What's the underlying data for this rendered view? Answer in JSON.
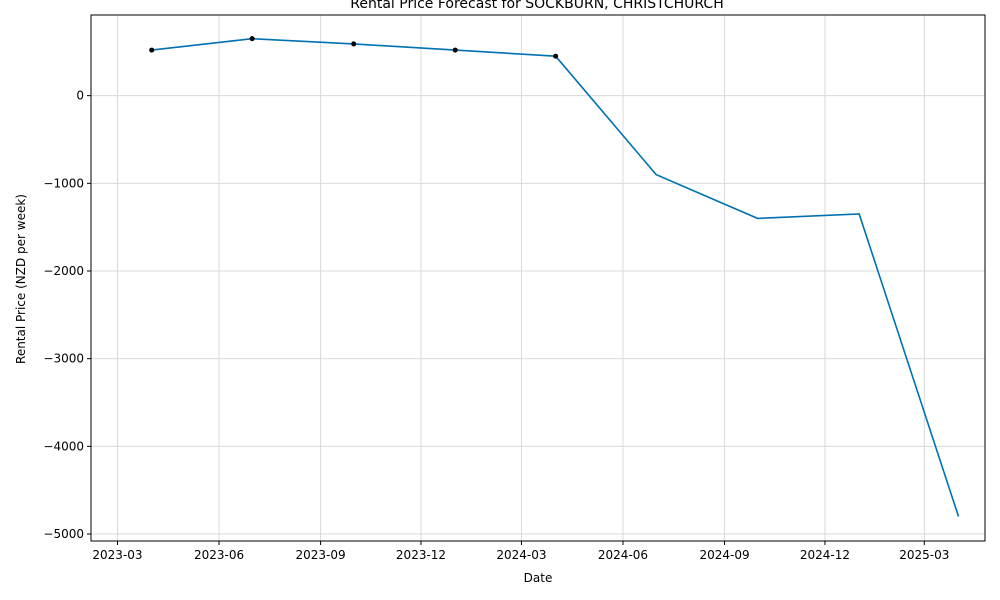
{
  "chart_data": {
    "type": "line",
    "title": "Rental Price Forecast for SOCKBURN, CHRISTCHURCH",
    "xlabel": "Date",
    "ylabel": "Rental Price (NZD per week)",
    "x_ticks": [
      "2023-03-01",
      "2023-06-01",
      "2023-09-01",
      "2023-12-01",
      "2024-03-01",
      "2024-06-01",
      "2024-09-01",
      "2024-12-01",
      "2025-03-01"
    ],
    "x_tick_labels": [
      "2023-03",
      "2023-06",
      "2023-09",
      "2023-12",
      "2024-03",
      "2024-06",
      "2024-09",
      "2024-12",
      "2025-03"
    ],
    "y_ticks": [
      0,
      -1000,
      -2000,
      -3000,
      -4000,
      -5000
    ],
    "y_tick_labels": [
      "0",
      "−1000",
      "−2000",
      "−3000",
      "−4000",
      "−5000"
    ],
    "xlim": [
      "2023-02-05",
      "2025-04-25"
    ],
    "ylim": [
      -5080,
      920
    ],
    "grid": true,
    "series": [
      {
        "color": "#0072B2",
        "points": [
          {
            "x": "2023-04-01",
            "y": 520
          },
          {
            "x": "2023-07-01",
            "y": 650
          },
          {
            "x": "2023-10-01",
            "y": 590
          },
          {
            "x": "2024-01-01",
            "y": 520
          },
          {
            "x": "2024-04-01",
            "y": 450
          },
          {
            "x": "2024-07-01",
            "y": -900
          },
          {
            "x": "2024-10-01",
            "y": -1400
          },
          {
            "x": "2025-01-01",
            "y": -1350
          },
          {
            "x": "2025-04-01",
            "y": -4800
          }
        ]
      }
    ],
    "observed": {
      "color": "#000000",
      "points": [
        {
          "x": "2023-04-01",
          "y": 520
        },
        {
          "x": "2023-07-01",
          "y": 650
        },
        {
          "x": "2023-10-01",
          "y": 590
        },
        {
          "x": "2024-01-01",
          "y": 520
        },
        {
          "x": "2024-04-01",
          "y": 450
        }
      ]
    }
  }
}
